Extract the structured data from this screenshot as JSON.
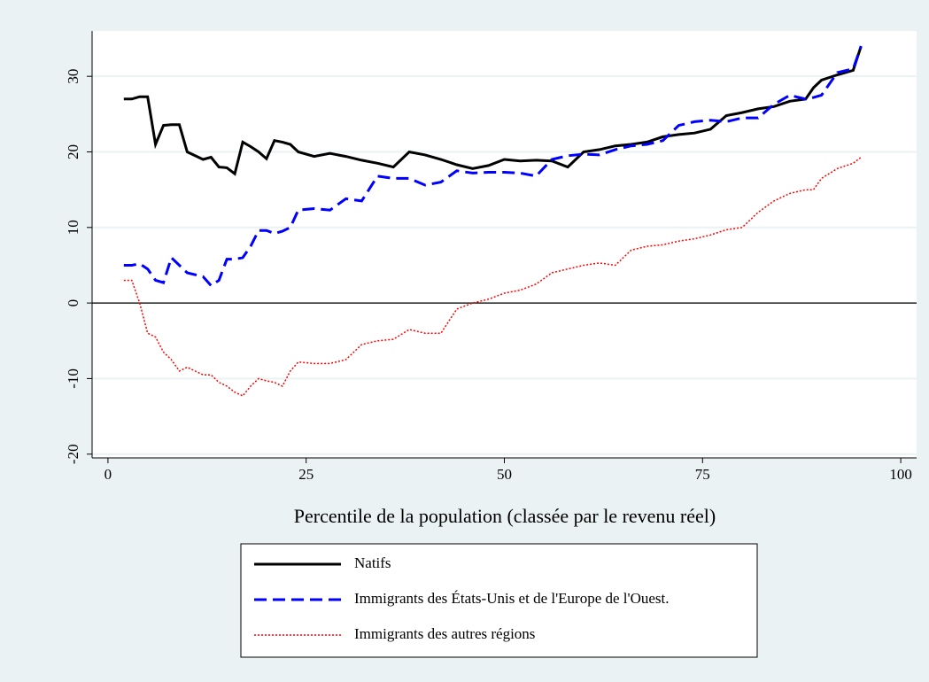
{
  "chart_data": {
    "type": "line",
    "x_label": "Percentile de la population (classée par le revenu réel)",
    "x": [
      2,
      3,
      4,
      5,
      6,
      7,
      8,
      9,
      10,
      12,
      13,
      14,
      15,
      16,
      17,
      18,
      19,
      20,
      21,
      22,
      23,
      24,
      26,
      28,
      30,
      32,
      34,
      36,
      38,
      40,
      42,
      44,
      46,
      48,
      50,
      52,
      54,
      56,
      58,
      60,
      62,
      64,
      66,
      68,
      70,
      72,
      74,
      76,
      78,
      80,
      82,
      84,
      86,
      88,
      89,
      90,
      92,
      94,
      95
    ],
    "series": [
      {
        "name": "Natifs",
        "color": "#000000",
        "dash": "solid",
        "values": [
          27,
          27,
          27.3,
          27.3,
          21,
          23.5,
          23.6,
          23.6,
          20,
          19,
          19.3,
          18,
          17.9,
          17.1,
          21.3,
          20.7,
          20,
          19.1,
          21.5,
          21.3,
          21,
          20,
          19.4,
          19.8,
          19.4,
          18.9,
          18.5,
          18,
          20,
          19.6,
          19,
          18.3,
          17.8,
          18.2,
          19,
          18.8,
          18.9,
          18.8,
          18,
          20,
          20.3,
          20.8,
          21,
          21.3,
          22,
          22.3,
          22.5,
          23,
          24.8,
          25.2,
          25.7,
          26,
          26.7,
          27,
          28.5,
          29.5,
          30.2,
          30.8,
          34
        ]
      },
      {
        "name": "Immigrants des États-Unis et de l'Europe de l'Ouest.",
        "color": "#0000ff",
        "dash": "dashed",
        "values": [
          5,
          5,
          5.2,
          4.5,
          3,
          2.7,
          6,
          5,
          4,
          3.5,
          2.3,
          3,
          5.8,
          5.8,
          6,
          7.5,
          9.6,
          9.6,
          9.2,
          9.5,
          10,
          12.3,
          12.5,
          12.3,
          13.8,
          13.5,
          16.8,
          16.5,
          16.5,
          15.6,
          16,
          17.5,
          17.2,
          17.3,
          17.3,
          17.2,
          16.8,
          19,
          19.5,
          19.7,
          19.6,
          20.3,
          20.8,
          21,
          21.5,
          23.5,
          24,
          24.2,
          24,
          24.5,
          24.5,
          26.3,
          27.5,
          27,
          27.2,
          27.5,
          30.5,
          31,
          34
        ]
      },
      {
        "name": "Immigrants des autres régions",
        "color": "#ff0000",
        "dash": "dotted",
        "values": [
          3,
          3,
          0,
          -4,
          -4.5,
          -6.5,
          -7.5,
          -9,
          -8.5,
          -9.5,
          -9.5,
          -10.5,
          -11,
          -11.8,
          -12.3,
          -11,
          -10,
          -10.3,
          -10.5,
          -11,
          -9,
          -7.8,
          -8,
          -8,
          -7.5,
          -5.5,
          -5,
          -4.8,
          -3.5,
          -4,
          -4,
          -0.8,
          0,
          0.5,
          1.3,
          1.7,
          2.5,
          4,
          4.5,
          5,
          5.3,
          5,
          7,
          7.5,
          7.7,
          8.2,
          8.5,
          9,
          9.7,
          10,
          12,
          13.5,
          14.5,
          15,
          15,
          16.5,
          17.8,
          18.5,
          19.3
        ]
      }
    ],
    "xlim": [
      -2,
      102
    ],
    "ylim": [
      -20.5,
      36
    ],
    "xticks": [
      0,
      25,
      50,
      75,
      100
    ],
    "yticks": [
      -20,
      -10,
      0,
      10,
      20,
      30
    ],
    "grid": true,
    "zero_line": true,
    "legend": "bottom"
  }
}
